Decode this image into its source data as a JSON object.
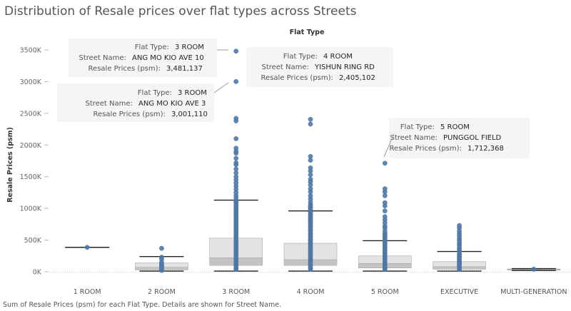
{
  "title": "Distribution of Resale prices over flat types across Streets",
  "footer": "Sum of Resale Prices (psm) for each Flat Type.  Details are shown for Street Name.",
  "colors": {
    "point": "#4e79a7",
    "box_upper": "#e3e3e3",
    "box_lower": "#c4c4c4",
    "whisker": "#222222",
    "tooltip_bg": "#f5f5f5"
  },
  "chart_data": {
    "type": "box",
    "x_header": "Flat Type",
    "ylabel": "Resale Prices (psm)",
    "ylim": [
      0,
      3650000
    ],
    "y_ticks": [
      0,
      500000,
      1000000,
      1500000,
      2000000,
      2500000,
      3000000,
      3500000
    ],
    "y_tick_labels": [
      "0K",
      "500K",
      "1000K",
      "1500K",
      "2000K",
      "2500K",
      "3000K",
      "3500K"
    ],
    "grid": false,
    "categories": [
      "1 ROOM",
      "2 ROOM",
      "3 ROOM",
      "4 ROOM",
      "5 ROOM",
      "EXECUTIVE",
      "MULTI-GENERATION"
    ],
    "boxes": [
      {
        "category": "1 ROOM",
        "whisker_low": 385000,
        "q1": 385000,
        "median": 385000,
        "q3": 385000,
        "whisker_high": 385000
      },
      {
        "category": "2 ROOM",
        "whisker_low": 10000,
        "q1": 30000,
        "median": 70000,
        "q3": 140000,
        "whisker_high": 240000
      },
      {
        "category": "3 ROOM",
        "whisker_low": 10000,
        "q1": 100000,
        "median": 220000,
        "q3": 530000,
        "whisker_high": 1130000
      },
      {
        "category": "4 ROOM",
        "whisker_low": 10000,
        "q1": 100000,
        "median": 190000,
        "q3": 450000,
        "whisker_high": 960000
      },
      {
        "category": "5 ROOM",
        "whisker_low": 10000,
        "q1": 60000,
        "median": 130000,
        "q3": 250000,
        "whisker_high": 490000
      },
      {
        "category": "EXECUTIVE",
        "whisker_low": 10000,
        "q1": 40000,
        "median": 80000,
        "q3": 160000,
        "whisker_high": 320000
      },
      {
        "category": "MULTI-GENERATION",
        "whisker_low": 20000,
        "q1": 25000,
        "median": 35000,
        "q3": 45000,
        "whisker_high": 50000
      }
    ],
    "points": [
      {
        "category": "1 ROOM",
        "values": [
          385000
        ]
      },
      {
        "category": "2 ROOM",
        "values": [
          370000,
          230000,
          200000,
          150000,
          120000,
          100000,
          80000,
          60000,
          40000,
          20000
        ]
      },
      {
        "category": "3 ROOM",
        "values": [
          3481137,
          3001110,
          2420000,
          2380000,
          2100000,
          1950000,
          1900000,
          1870000,
          1790000,
          1720000,
          1690000,
          1620000,
          1560000,
          1500000,
          1450000,
          1400000,
          1350000,
          1300000,
          1250000,
          1200000,
          1160000,
          1100000,
          1050000,
          1000000,
          950000,
          900000,
          850000,
          800000,
          750000,
          700000,
          650000,
          600000,
          550000,
          500000,
          450000,
          400000,
          350000,
          300000,
          250000,
          200000,
          150000,
          100000,
          50000
        ]
      },
      {
        "category": "4 ROOM",
        "values": [
          2405102,
          2330000,
          1820000,
          1760000,
          1640000,
          1590000,
          1530000,
          1460000,
          1420000,
          1370000,
          1310000,
          1260000,
          1200000,
          1150000,
          1100000,
          1060000,
          1020000,
          980000,
          940000,
          900000,
          860000,
          820000,
          780000,
          740000,
          700000,
          650000,
          600000,
          550000,
          500000,
          450000,
          400000,
          350000,
          300000,
          250000,
          200000,
          150000,
          100000,
          50000
        ]
      },
      {
        "category": "5 ROOM",
        "values": [
          1712368,
          1310000,
          1260000,
          1200000,
          1090000,
          1040000,
          960000,
          870000,
          820000,
          770000,
          720000,
          690000,
          640000,
          600000,
          560000,
          520000,
          480000,
          440000,
          400000,
          350000,
          300000,
          250000,
          200000,
          150000,
          100000,
          50000
        ]
      },
      {
        "category": "EXECUTIVE",
        "values": [
          730000,
          690000,
          640000,
          600000,
          560000,
          520000,
          490000,
          450000,
          420000,
          380000,
          350000,
          320000,
          280000,
          240000,
          200000,
          160000,
          120000,
          80000,
          40000
        ]
      },
      {
        "category": "MULTI-GENERATION",
        "values": [
          40000
        ]
      }
    ]
  },
  "tooltips": [
    {
      "id": "tt-3room-ang-mo-kio-ave-10",
      "flat_type_label": "Flat Type:",
      "flat_type": "3 ROOM",
      "street_label": "Street Name:",
      "street": "ANG MO KIO AVE 10",
      "price_label": "Resale Prices (psm):",
      "price": "3,481,137",
      "category": "3 ROOM",
      "target_value": 3481137
    },
    {
      "id": "tt-3room-ang-mo-kio-ave-3",
      "flat_type_label": "Flat Type:",
      "flat_type": "3 ROOM",
      "street_label": "Street Name:",
      "street": "ANG MO KIO AVE 3",
      "price_label": "Resale Prices (psm):",
      "price": "3,001,110",
      "category": "3 ROOM",
      "target_value": 3001110
    },
    {
      "id": "tt-4room-yishun-ring-rd",
      "flat_type_label": "Flat Type:",
      "flat_type": "4 ROOM",
      "street_label": "Street Name:",
      "street": "YISHUN RING RD",
      "price_label": "Resale Prices (psm):",
      "price": "2,405,102",
      "category": "4 ROOM",
      "target_value": 2405102
    },
    {
      "id": "tt-5room-punggol-field",
      "flat_type_label": "Flat Type:",
      "flat_type": "5 ROOM",
      "street_label": "Street Name:",
      "street": "PUNGGOL FIELD",
      "price_label": "Resale Prices (psm):",
      "price": "1,712,368",
      "category": "5 ROOM",
      "target_value": 1712368
    }
  ]
}
